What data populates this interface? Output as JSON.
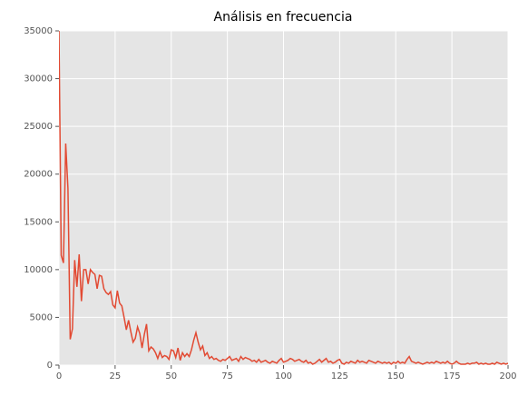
{
  "chart_data": {
    "type": "line",
    "title": "Análisis en frecuencia",
    "x": [
      0,
      1,
      2,
      3,
      4,
      5,
      6,
      7,
      8,
      9,
      10,
      11,
      12,
      13,
      14,
      15,
      16,
      17,
      18,
      19,
      20,
      21,
      22,
      23,
      24,
      25,
      26,
      27,
      28,
      29,
      30,
      31,
      32,
      33,
      34,
      35,
      36,
      37,
      38,
      39,
      40,
      41,
      42,
      43,
      44,
      45,
      46,
      47,
      48,
      49,
      50,
      51,
      52,
      53,
      54,
      55,
      56,
      57,
      58,
      59,
      60,
      61,
      62,
      63,
      64,
      65,
      66,
      67,
      68,
      69,
      70,
      71,
      72,
      73,
      74,
      75,
      76,
      77,
      78,
      79,
      80,
      81,
      82,
      83,
      84,
      85,
      86,
      87,
      88,
      89,
      90,
      91,
      92,
      93,
      94,
      95,
      96,
      97,
      98,
      99,
      100,
      101,
      102,
      103,
      104,
      105,
      106,
      107,
      108,
      109,
      110,
      111,
      112,
      113,
      114,
      115,
      116,
      117,
      118,
      119,
      120,
      121,
      122,
      123,
      124,
      125,
      126,
      127,
      128,
      129,
      130,
      131,
      132,
      133,
      134,
      135,
      136,
      137,
      138,
      139,
      140,
      141,
      142,
      143,
      144,
      145,
      146,
      147,
      148,
      149,
      150,
      151,
      152,
      153,
      154,
      155,
      156,
      157,
      158,
      159,
      160,
      161,
      162,
      163,
      164,
      165,
      166,
      167,
      168,
      169,
      170,
      171,
      172,
      173,
      174,
      175,
      176,
      177,
      178,
      179,
      180,
      181,
      182,
      183,
      184,
      185,
      186,
      187,
      188,
      189,
      190,
      191,
      192,
      193,
      194,
      195,
      196,
      197,
      198,
      199,
      200
    ],
    "series": [
      {
        "color": "#e24a33",
        "values": [
          35000,
          11500,
          10700,
          23200,
          18500,
          2700,
          3800,
          11000,
          8200,
          11600,
          6700,
          10000,
          10000,
          8500,
          10000,
          9700,
          9500,
          8000,
          9400,
          9300,
          8000,
          7600,
          7400,
          7700,
          6300,
          6000,
          7800,
          6500,
          6200,
          5000,
          3700,
          4700,
          3500,
          2400,
          2800,
          4000,
          3300,
          1800,
          3200,
          4300,
          1500,
          1900,
          1700,
          1300,
          700,
          1400,
          800,
          1000,
          900,
          600,
          1600,
          1500,
          800,
          1800,
          500,
          1300,
          900,
          1200,
          900,
          1600,
          2600,
          3400,
          2400,
          1600,
          2000,
          1000,
          1300,
          700,
          900,
          600,
          700,
          500,
          400,
          600,
          500,
          700,
          900,
          500,
          600,
          700,
          400,
          900,
          600,
          800,
          700,
          600,
          400,
          500,
          300,
          600,
          300,
          400,
          500,
          300,
          200,
          400,
          300,
          200,
          500,
          700,
          300,
          400,
          500,
          700,
          600,
          400,
          500,
          600,
          400,
          300,
          500,
          200,
          300,
          100,
          200,
          400,
          600,
          300,
          500,
          700,
          300,
          400,
          200,
          300,
          500,
          600,
          200,
          100,
          300,
          200,
          400,
          300,
          200,
          500,
          300,
          400,
          300,
          200,
          500,
          400,
          300,
          200,
          400,
          300,
          200,
          300,
          200,
          300,
          100,
          300,
          200,
          400,
          200,
          300,
          200,
          600,
          900,
          400,
          300,
          200,
          300,
          200,
          100,
          200,
          300,
          200,
          300,
          200,
          400,
          300,
          200,
          300,
          200,
          400,
          200,
          100,
          200,
          400,
          200,
          100,
          100,
          100,
          200,
          100,
          200,
          200,
          300,
          100,
          200,
          100,
          200,
          100,
          100,
          200,
          100,
          300,
          200,
          100,
          200,
          100,
          200
        ]
      }
    ],
    "xlim": [
      0,
      200
    ],
    "xticks": [
      0,
      25,
      50,
      75,
      100,
      125,
      150,
      175,
      200
    ],
    "ylim": [
      0,
      35000
    ],
    "yticks": [
      0,
      5000,
      10000,
      15000,
      20000,
      25000,
      30000,
      35000
    ],
    "grid": true
  }
}
